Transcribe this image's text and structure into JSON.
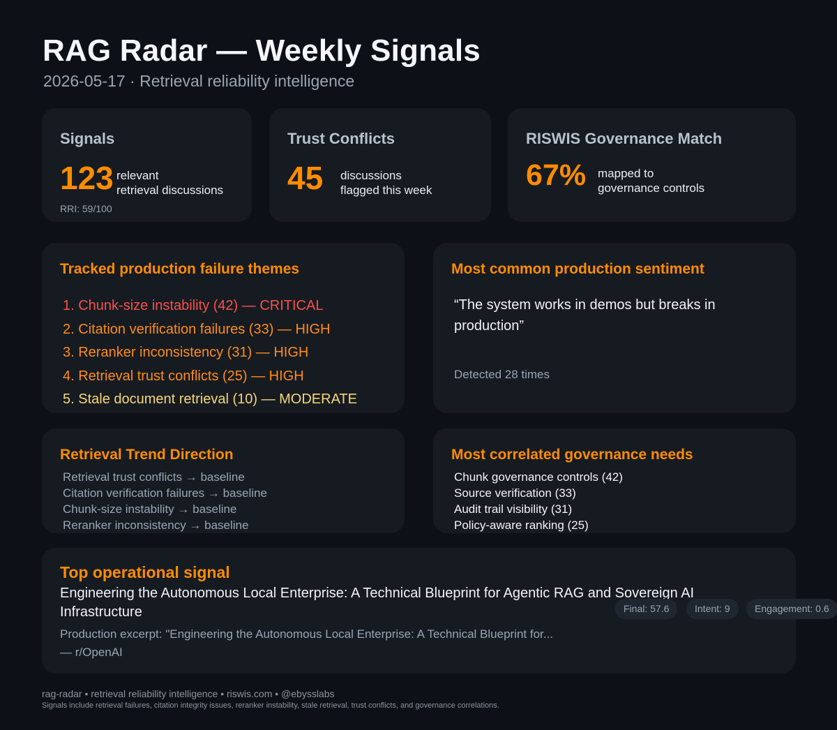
{
  "header": {
    "title": "RAG Radar — Weekly Signals",
    "subtitle": "2026-05-17 · Retrieval reliability intelligence"
  },
  "stats": {
    "signals": {
      "label": "Signals",
      "value": "123",
      "desc_line1": "relevant",
      "desc_line2": "retrieval discussions",
      "note": "RRI: 59/100"
    },
    "trust": {
      "label": "Trust Conflicts",
      "value": "45",
      "desc_line1": "discussions",
      "desc_line2": "flagged this week"
    },
    "governance": {
      "label": "RISWIS Governance Match",
      "value": "67%",
      "desc_line1": "mapped to",
      "desc_line2": "governance controls"
    }
  },
  "themes": {
    "heading": "Tracked production failure themes",
    "items": [
      {
        "text": "1. Chunk-size instability (42) — CRITICAL",
        "color": "#f85149"
      },
      {
        "text": "2. Citation verification failures (33) — HIGH",
        "color": "#ff8c1a"
      },
      {
        "text": "3. Reranker inconsistency (31) — HIGH",
        "color": "#ff8c1a"
      },
      {
        "text": "4. Retrieval trust conflicts (25) — HIGH",
        "color": "#ff8c1a"
      },
      {
        "text": "5. Stale document retrieval (10) — MODERATE",
        "color": "#f7d774"
      }
    ]
  },
  "sentiment": {
    "heading": "Most common production sentiment",
    "quote": "“The system works in demos but breaks in production”",
    "detected": "Detected 28 times"
  },
  "trend": {
    "heading": "Retrieval Trend Direction",
    "items": [
      "Retrieval trust conflicts → baseline",
      "Citation verification failures → baseline",
      "Chunk-size instability → baseline",
      "Reranker inconsistency → baseline"
    ]
  },
  "governance_needs": {
    "heading": "Most correlated governance needs",
    "items": [
      "Chunk governance controls (42)",
      "Source verification (33)",
      "Audit trail visibility (31)",
      "Policy-aware ranking (25)"
    ]
  },
  "top_signal": {
    "heading": "Top operational signal",
    "title": "Engineering the Autonomous Local Enterprise: A Technical Blueprint for Agentic RAG and Sovereign AI Infrastructure",
    "excerpt": "Production excerpt: \"Engineering the Autonomous Local Enterprise: A Technical Blueprint for...",
    "source": "— r/OpenAI",
    "badges": {
      "final": "Final: 57.6",
      "intent": "Intent: 9",
      "engagement": "Engagement: 0.6"
    }
  },
  "footer": {
    "line1": "rag-radar • retrieval reliability intelligence • riswis.com • @ebysslabs",
    "line2": "Signals include retrieval failures, citation integrity issues, reranker instability, stale retrieval, trust conflicts, and governance correlations."
  },
  "colors": {
    "background": "#0d1117",
    "card": "#161b22",
    "accent": "#ff8c00",
    "critical": "#f85149",
    "high": "#ff8c1a",
    "moderate": "#f7d774"
  }
}
